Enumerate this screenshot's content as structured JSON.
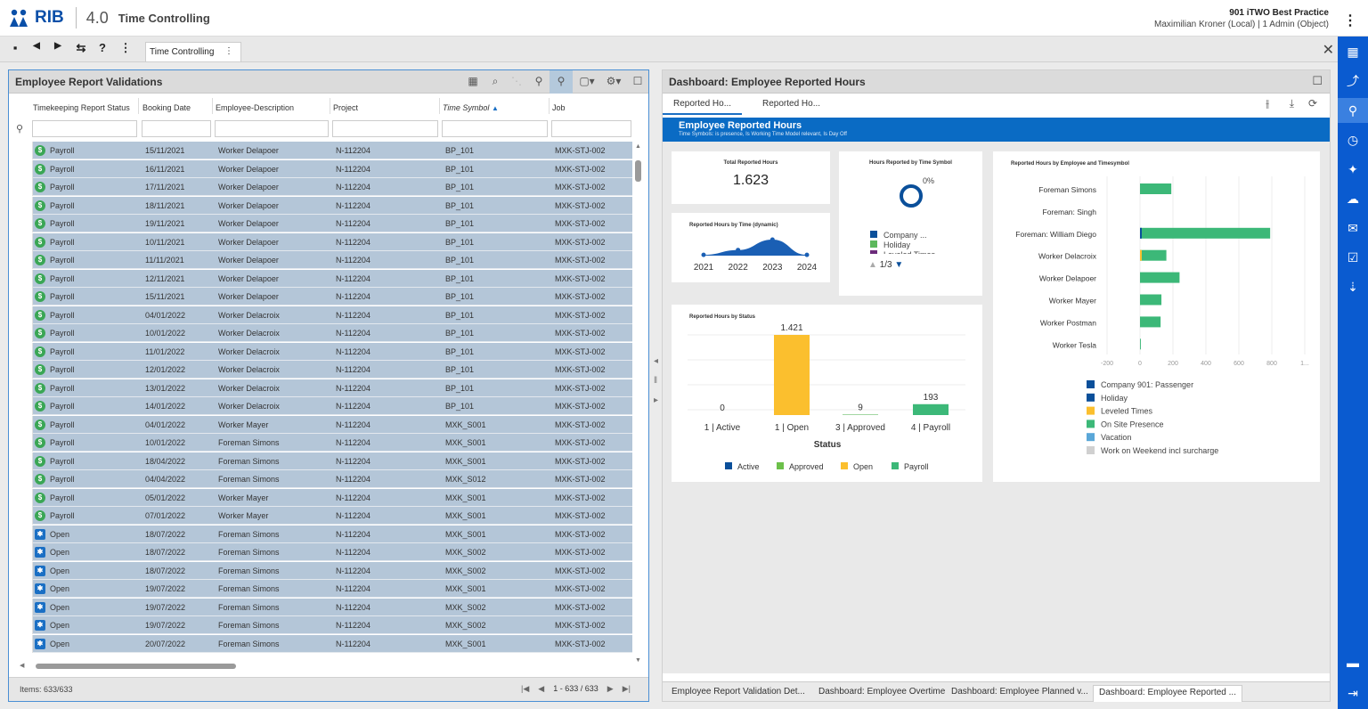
{
  "header": {
    "brand": "RIB",
    "version": "4.0",
    "module": "Time Controlling",
    "company": "901 iTWO Best Practice",
    "user": "Maximilian Kroner (Local) | 1 Admin (Object)"
  },
  "toolbar": {
    "tab_label": "Time Controlling"
  },
  "grid": {
    "title": "Employee Report Validations",
    "columns": [
      "Timekeeping Report Status",
      "Booking Date",
      "Employee-Description",
      "Project",
      "Time Symbol",
      "Job"
    ],
    "rows": [
      [
        "Payroll",
        "15/11/2021",
        "Worker Delapoer",
        "N-112204",
        "BP_101",
        "MXK-STJ-002"
      ],
      [
        "Payroll",
        "16/11/2021",
        "Worker Delapoer",
        "N-112204",
        "BP_101",
        "MXK-STJ-002"
      ],
      [
        "Payroll",
        "17/11/2021",
        "Worker Delapoer",
        "N-112204",
        "BP_101",
        "MXK-STJ-002"
      ],
      [
        "Payroll",
        "18/11/2021",
        "Worker Delapoer",
        "N-112204",
        "BP_101",
        "MXK-STJ-002"
      ],
      [
        "Payroll",
        "19/11/2021",
        "Worker Delapoer",
        "N-112204",
        "BP_101",
        "MXK-STJ-002"
      ],
      [
        "Payroll",
        "10/11/2021",
        "Worker Delapoer",
        "N-112204",
        "BP_101",
        "MXK-STJ-002"
      ],
      [
        "Payroll",
        "11/11/2021",
        "Worker Delapoer",
        "N-112204",
        "BP_101",
        "MXK-STJ-002"
      ],
      [
        "Payroll",
        "12/11/2021",
        "Worker Delapoer",
        "N-112204",
        "BP_101",
        "MXK-STJ-002"
      ],
      [
        "Payroll",
        "15/11/2021",
        "Worker Delapoer",
        "N-112204",
        "BP_101",
        "MXK-STJ-002"
      ],
      [
        "Payroll",
        "04/01/2022",
        "Worker Delacroix",
        "N-112204",
        "BP_101",
        "MXK-STJ-002"
      ],
      [
        "Payroll",
        "10/01/2022",
        "Worker Delacroix",
        "N-112204",
        "BP_101",
        "MXK-STJ-002"
      ],
      [
        "Payroll",
        "11/01/2022",
        "Worker Delacroix",
        "N-112204",
        "BP_101",
        "MXK-STJ-002"
      ],
      [
        "Payroll",
        "12/01/2022",
        "Worker Delacroix",
        "N-112204",
        "BP_101",
        "MXK-STJ-002"
      ],
      [
        "Payroll",
        "13/01/2022",
        "Worker Delacroix",
        "N-112204",
        "BP_101",
        "MXK-STJ-002"
      ],
      [
        "Payroll",
        "14/01/2022",
        "Worker Delacroix",
        "N-112204",
        "BP_101",
        "MXK-STJ-002"
      ],
      [
        "Payroll",
        "04/01/2022",
        "Worker Mayer",
        "N-112204",
        "MXK_S001",
        "MXK-STJ-002"
      ],
      [
        "Payroll",
        "10/01/2022",
        "Foreman Simons",
        "N-112204",
        "MXK_S001",
        "MXK-STJ-002"
      ],
      [
        "Payroll",
        "18/04/2022",
        "Foreman Simons",
        "N-112204",
        "MXK_S001",
        "MXK-STJ-002"
      ],
      [
        "Payroll",
        "04/04/2022",
        "Foreman Simons",
        "N-112204",
        "MXK_S012",
        "MXK-STJ-002"
      ],
      [
        "Payroll",
        "05/01/2022",
        "Worker Mayer",
        "N-112204",
        "MXK_S001",
        "MXK-STJ-002"
      ],
      [
        "Payroll",
        "07/01/2022",
        "Worker Mayer",
        "N-112204",
        "MXK_S001",
        "MXK-STJ-002"
      ],
      [
        "Open",
        "18/07/2022",
        "Foreman Simons",
        "N-112204",
        "MXK_S001",
        "MXK-STJ-002"
      ],
      [
        "Open",
        "18/07/2022",
        "Foreman Simons",
        "N-112204",
        "MXK_S002",
        "MXK-STJ-002"
      ],
      [
        "Open",
        "18/07/2022",
        "Foreman Simons",
        "N-112204",
        "MXK_S002",
        "MXK-STJ-002"
      ],
      [
        "Open",
        "19/07/2022",
        "Foreman Simons",
        "N-112204",
        "MXK_S001",
        "MXK-STJ-002"
      ],
      [
        "Open",
        "19/07/2022",
        "Foreman Simons",
        "N-112204",
        "MXK_S002",
        "MXK-STJ-002"
      ],
      [
        "Open",
        "19/07/2022",
        "Foreman Simons",
        "N-112204",
        "MXK_S002",
        "MXK-STJ-002"
      ],
      [
        "Open",
        "20/07/2022",
        "Foreman Simons",
        "N-112204",
        "MXK_S001",
        "MXK-STJ-002"
      ]
    ],
    "items_label": "Items: 633/633",
    "pager": "1 - 633 / 633"
  },
  "dashboard": {
    "panel_title": "Dashboard: Employee Reported Hours",
    "tabs": [
      "Reported Ho...",
      "Reported Ho..."
    ],
    "title": "Employee Reported Hours",
    "subtitle": "Time Symbols: is presence, Is Working Time Model relevant, Is Day Off",
    "total_title": "Total Reported Hours",
    "total_value": "1.623",
    "donut_title": "Hours Reported by Time Symbol",
    "donut_pct": "0%",
    "donut_legend": [
      {
        "label": "Company ...",
        "color": "#0a4f9a"
      },
      {
        "label": "Holiday",
        "color": "#5cb85c"
      },
      {
        "label": "Leveled Times",
        "color": "#6b2a7a"
      }
    ],
    "donut_pager": "1/3",
    "bottom_tabs": [
      "Employee Report Validation Det...",
      "Dashboard: Employee Overtime",
      "Dashboard: Employee Planned v...",
      "Dashboard: Employee Reported ..."
    ]
  },
  "chart_data": [
    {
      "type": "area",
      "title": "Reported Hours by Time (dynamic)",
      "categories": [
        "2021",
        "2022",
        "2023",
        "2024"
      ],
      "values": [
        0.05,
        0.35,
        1,
        0.05
      ]
    },
    {
      "type": "bar",
      "title": "Reported Hours by Status",
      "xlabel": "Status",
      "categories": [
        "1 | Active",
        "1 | Open",
        "3 | Approved",
        "4 | Payroll"
      ],
      "values": [
        0,
        1421,
        9,
        193
      ],
      "value_labels": [
        "0",
        "1.421",
        "9",
        "193"
      ],
      "colors": [
        "#0a4f9a",
        "#fbbf2e",
        "#5cb85c",
        "#3cb878"
      ],
      "legend": [
        {
          "label": "Active",
          "color": "#0a4f9a"
        },
        {
          "label": "Approved",
          "color": "#6cc04a"
        },
        {
          "label": "Open",
          "color": "#fbbf2e"
        },
        {
          "label": "Payroll",
          "color": "#3cb878"
        }
      ]
    },
    {
      "type": "bar",
      "orientation": "horizontal",
      "title": "Reported Hours by Employee and Timesymbol",
      "categories": [
        "Foreman Simons",
        "Foreman: Singh",
        "Foreman: William Diego",
        "Worker Delacroix",
        "Worker Delapoer",
        "Worker Mayer",
        "Worker Postman",
        "Worker Tesla"
      ],
      "values": [
        190,
        0,
        790,
        160,
        240,
        130,
        125,
        5
      ],
      "xticks": [
        "-200",
        "0",
        "200",
        "400",
        "600",
        "800",
        "1..."
      ],
      "xlim": [
        -200,
        1000
      ],
      "legend": [
        {
          "label": "Company 901: Passenger",
          "color": "#0a4f9a"
        },
        {
          "label": "Holiday",
          "color": "#0a4f9a"
        },
        {
          "label": "Leveled Times",
          "color": "#fbbf2e"
        },
        {
          "label": "On Site Presence",
          "color": "#3cb878"
        },
        {
          "label": "Vacation",
          "color": "#5aa7d8"
        },
        {
          "label": "Work on Weekend incl surcharge",
          "color": "#d0d0d0"
        }
      ]
    }
  ]
}
